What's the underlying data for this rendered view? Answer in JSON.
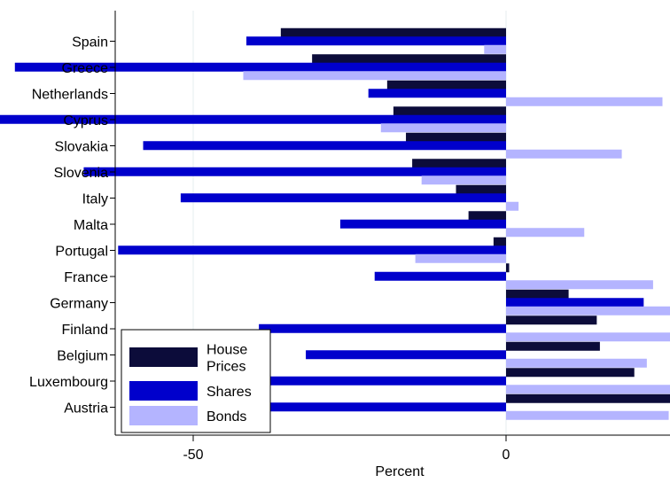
{
  "chart_data": {
    "type": "bar",
    "orientation": "horizontal",
    "xlabel": "Percent",
    "xlim": [
      -125,
      50
    ],
    "xticks": [
      -100,
      -50,
      0,
      50
    ],
    "grid": true,
    "legend_position": "bottom-left",
    "categories": [
      "Spain",
      "Greece",
      "Netherlands",
      "Cyprus",
      "Slovakia",
      "Slovenia",
      "Italy",
      "Malta",
      "Portugal",
      "France",
      "Germany",
      "Finland",
      "Belgium",
      "Luxembourg",
      "Austria"
    ],
    "series": [
      {
        "name": "House Prices",
        "legend_lines": [
          "House",
          "Prices"
        ],
        "color": "#0c0c3a",
        "values": [
          -36,
          -31,
          -19,
          -18,
          -16,
          -15,
          -8,
          -6,
          -2,
          0.5,
          10,
          14.5,
          15,
          20.5,
          36.5
        ]
      },
      {
        "name": "Shares",
        "legend_lines": [
          "Shares"
        ],
        "color": "#0000cc",
        "values": [
          -41.5,
          -78.5,
          -22,
          -96.5,
          -58,
          -67.5,
          -52,
          -26.5,
          -62,
          -21,
          22,
          -39.5,
          -32,
          -60,
          -41
        ]
      },
      {
        "name": "Bonds",
        "legend_lines": [
          "Bonds"
        ],
        "color": "#b4b4ff",
        "values": [
          -3.5,
          -42,
          25,
          -20,
          18.5,
          -13.5,
          2,
          12.5,
          -14.5,
          23.5,
          29,
          26.5,
          22.5,
          32.5,
          26
        ]
      }
    ]
  }
}
